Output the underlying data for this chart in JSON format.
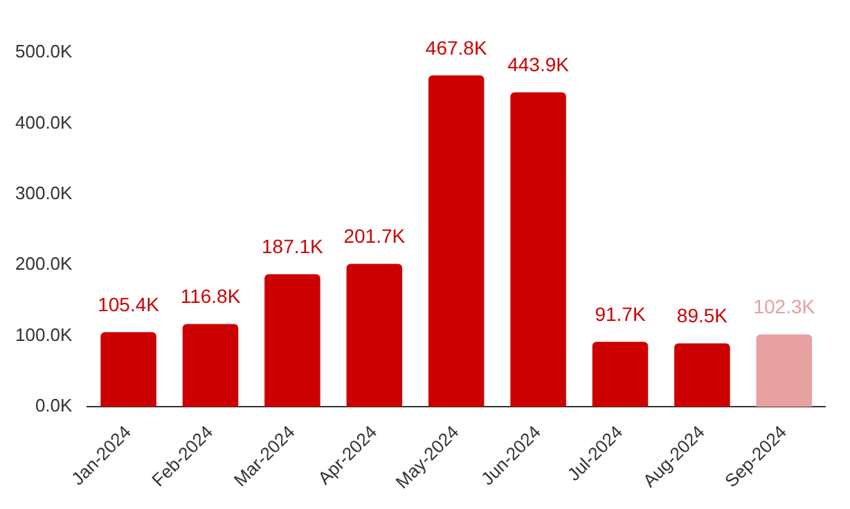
{
  "chart_data": {
    "type": "bar",
    "categories": [
      "Jan-2024",
      "Feb-2024",
      "Mar-2024",
      "Apr-2024",
      "May-2024",
      "Jun-2024",
      "Jul-2024",
      "Aug-2024",
      "Sep-2024"
    ],
    "values": [
      105.4,
      116.8,
      187.1,
      201.7,
      467.8,
      443.9,
      91.7,
      89.5,
      102.3
    ],
    "colors": [
      "#cc0000",
      "#cc0000",
      "#cc0000",
      "#cc0000",
      "#cc0000",
      "#cc0000",
      "#cc0000",
      "#cc0000",
      "#e8a0a0"
    ],
    "value_labels": [
      "105.4K",
      "116.8K",
      "187.1K",
      "201.7K",
      "467.8K",
      "443.9K",
      "91.7K",
      "89.5K",
      "102.3K"
    ],
    "ylim": [
      0,
      500
    ],
    "yticks": [
      {
        "value": 0,
        "label": "0.0K"
      },
      {
        "value": 100,
        "label": "100.0K"
      },
      {
        "value": 200,
        "label": "200.0K"
      },
      {
        "value": 300,
        "label": "300.0K"
      },
      {
        "value": 400,
        "label": "400.0K"
      },
      {
        "value": 500,
        "label": "500.0K"
      }
    ],
    "grid": false,
    "legend": false
  }
}
